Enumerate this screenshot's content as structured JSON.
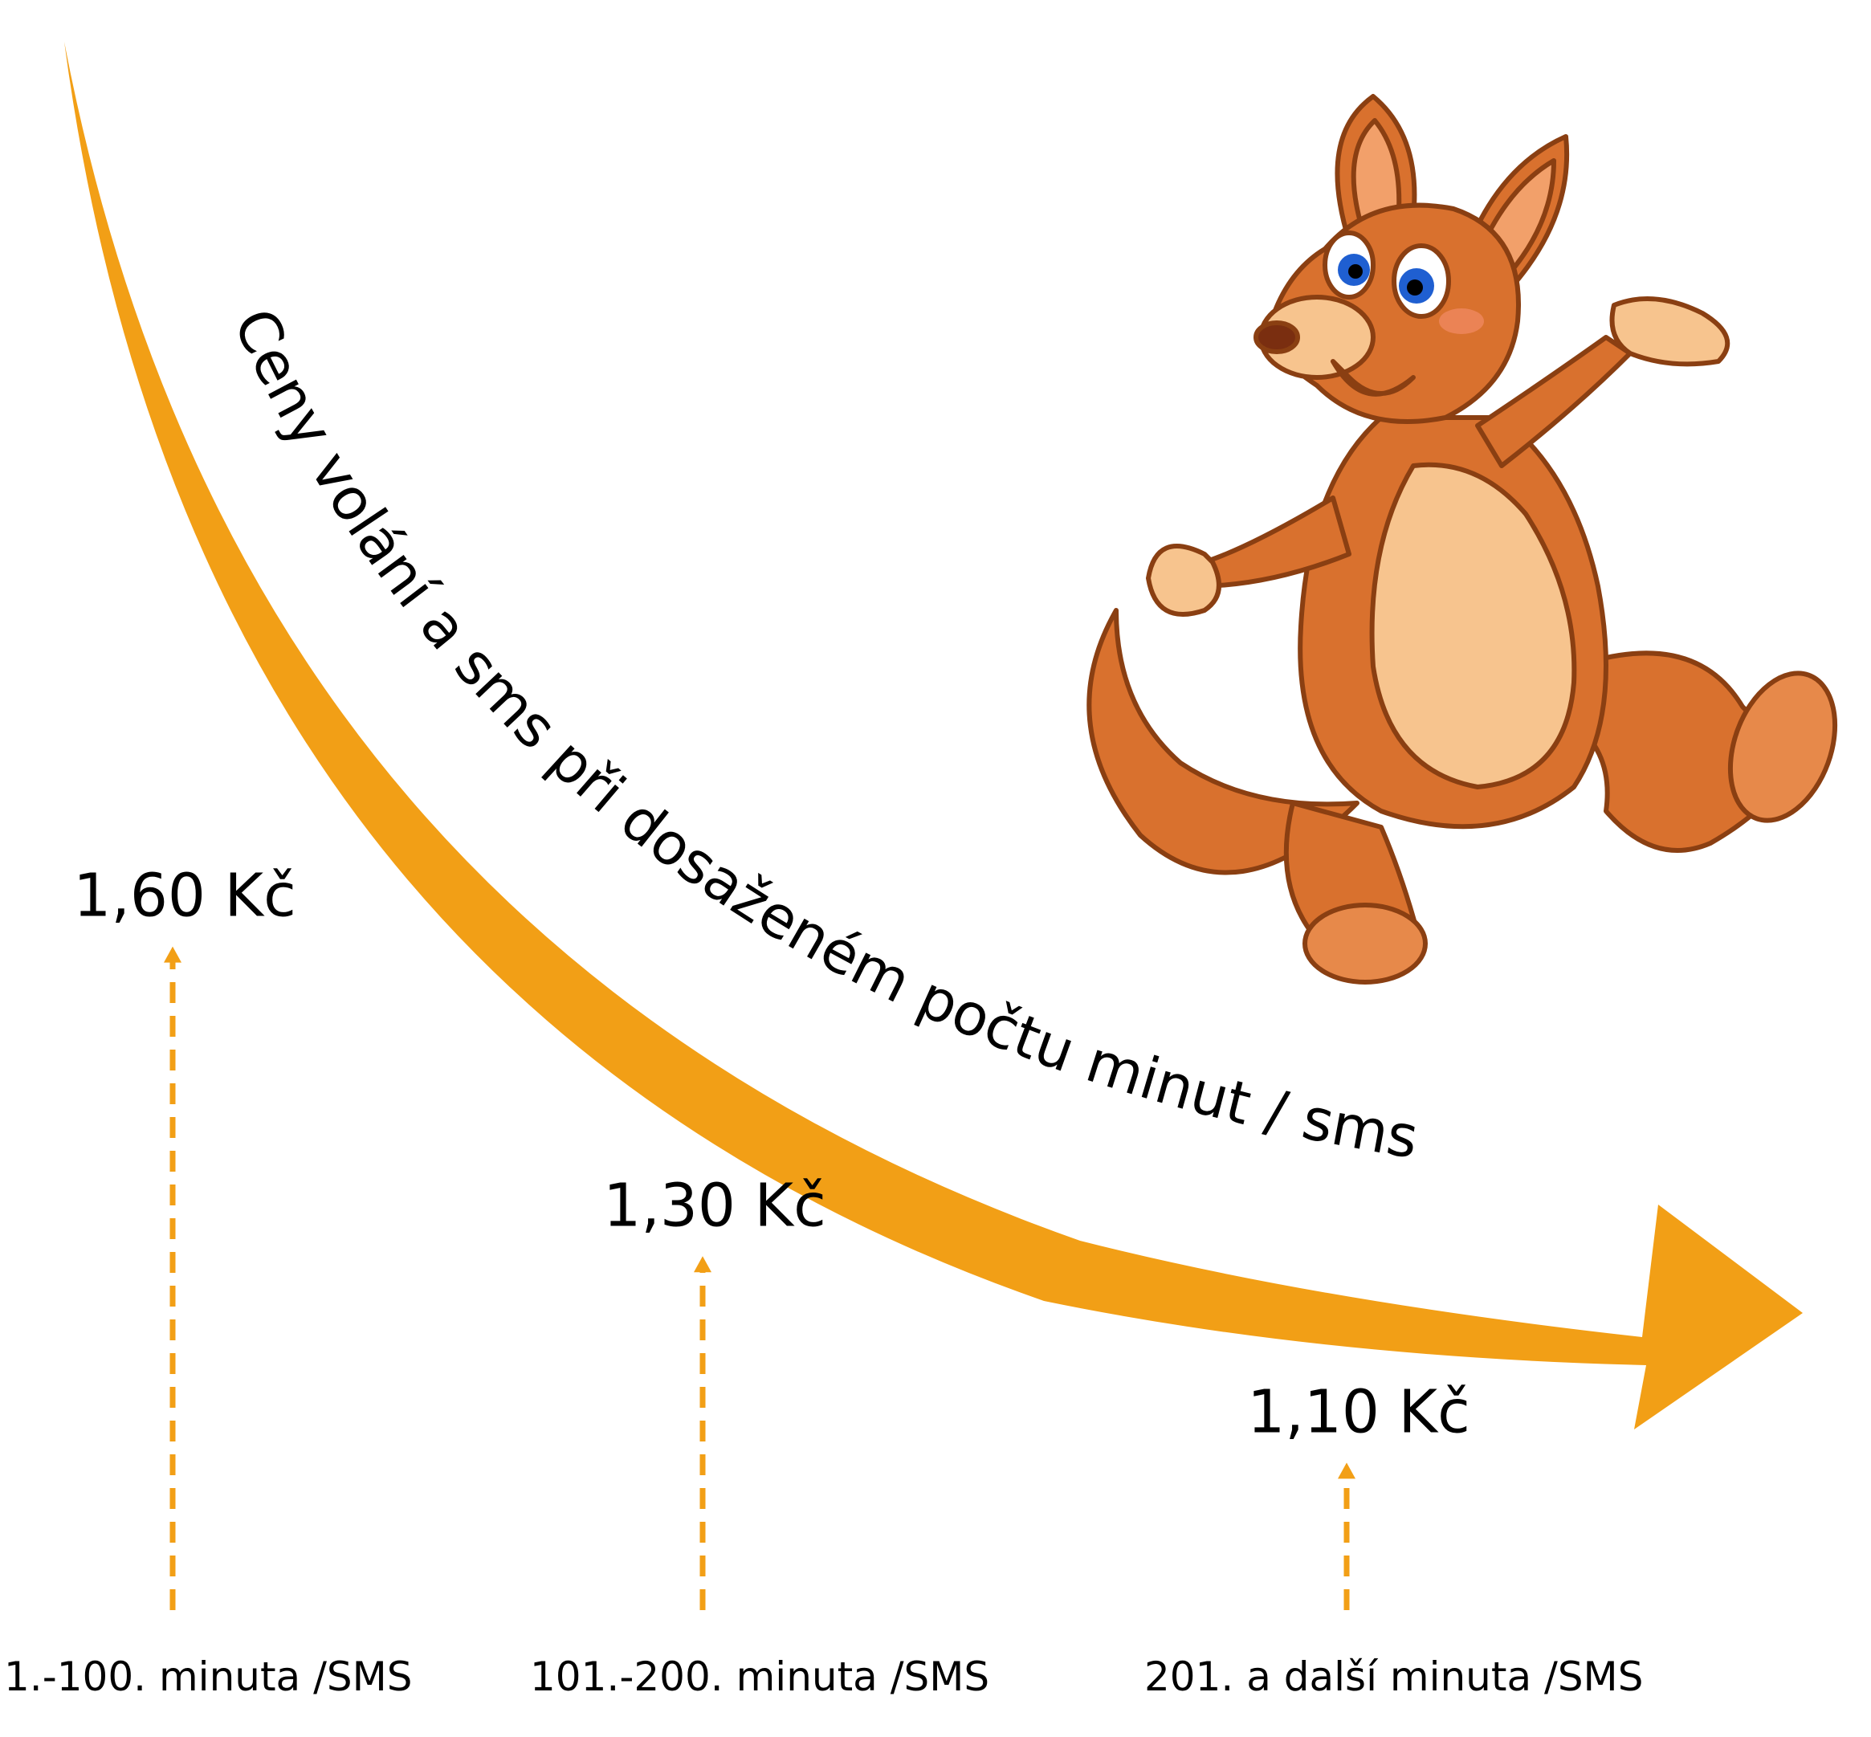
{
  "chart_data": {
    "type": "line",
    "title": "Ceny volání a sms při dosaženém počtu minut / sms",
    "categories": [
      "1.-100. minuta /SMS",
      "101.-200. minuta /SMS",
      "201. a další minuta /SMS"
    ],
    "values": [
      1.6,
      1.3,
      1.1
    ],
    "value_labels": [
      "1,60 Kč",
      "1,30 Kč",
      "1,10 Kč"
    ],
    "unit": "Kč",
    "ylim": [
      1.0,
      1.7
    ],
    "grid": false,
    "legend": "none"
  },
  "colors": {
    "accent": "#F29F16",
    "text": "#000000",
    "kangaroo_body": "#D9712E",
    "kangaroo_belly": "#F7C48E"
  },
  "illustration": {
    "icon": "kangaroo-mascot-icon"
  }
}
